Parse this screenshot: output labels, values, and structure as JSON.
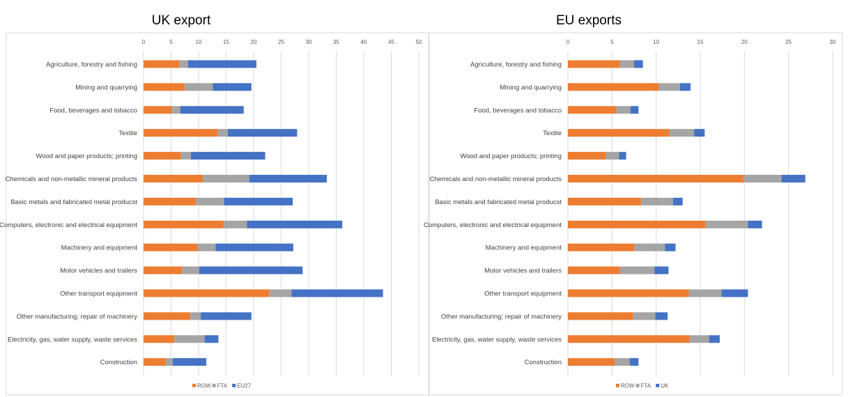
{
  "chart_data": [
    {
      "type": "bar",
      "orientation": "horizontal",
      "stacked": true,
      "title": "UK export",
      "xlim": [
        0,
        50
      ],
      "xticks": [
        0,
        5,
        10,
        15,
        20,
        25,
        30,
        35,
        40,
        45,
        50
      ],
      "grid": true,
      "legend_placement": "bottom",
      "categories": [
        "Agriculture, forestry and fishing",
        "Mining and quarrying",
        "Food, beverages and tobacco",
        "Textile",
        "Wood and paper products; printing",
        "Chemicals and non-metallic mineral products",
        "Basic metals and fabricated metal producst",
        "Computers, electronic and electrical equipment",
        "Machinery and equipment",
        "Motor vehicles and trailers",
        "Other transport equipment",
        "Other manufacturing; repair of machinery",
        "Electricity, gas, water supply, waste services",
        "Construction"
      ],
      "series": [
        {
          "name": "ROW",
          "color": "#ED7D31",
          "values": [
            6.5,
            7.5,
            5.2,
            13.5,
            6.8,
            10.8,
            9.5,
            14.5,
            9.8,
            7.0,
            22.8,
            8.5,
            5.6,
            4.0
          ]
        },
        {
          "name": "FTA",
          "color": "#A5A5A5",
          "values": [
            1.6,
            5.1,
            1.5,
            1.8,
            1.8,
            8.4,
            5.1,
            4.3,
            3.3,
            3.1,
            4.1,
            1.9,
            5.5,
            1.3
          ]
        },
        {
          "name": "EU27",
          "color": "#4472C4",
          "values": [
            12.4,
            7.0,
            11.5,
            12.6,
            13.5,
            14.1,
            12.5,
            17.3,
            14.1,
            18.8,
            16.6,
            9.2,
            2.5,
            6.1
          ]
        }
      ]
    },
    {
      "type": "bar",
      "orientation": "horizontal",
      "stacked": true,
      "title": "EU exports",
      "xlim": [
        0,
        30
      ],
      "xticks": [
        0,
        5,
        10,
        15,
        20,
        25,
        30
      ],
      "grid": true,
      "legend_placement": "bottom",
      "categories": [
        "Agriculture, forestry and fishing",
        "Mining and quarrying",
        "Food, beverages and tobacco",
        "Textile",
        "Wood and paper products; printing",
        "Chemicals and non-metallic mineral products",
        "Basic metals and fabricated metal producst",
        "Computers, electronic and electrical equipment",
        "Machinery and equipment",
        "Motor vehicles and trailers",
        "Other transport equipment",
        "Other manufacturing; repair of machinery",
        "Electricity, gas, water supply, waste services",
        "Construction"
      ],
      "series": [
        {
          "name": "ROW",
          "color": "#ED7D31",
          "values": [
            5.9,
            10.3,
            5.5,
            11.5,
            4.3,
            19.9,
            8.3,
            15.6,
            7.5,
            5.9,
            13.7,
            7.4,
            13.8,
            5.3
          ]
        },
        {
          "name": "FTA",
          "color": "#A5A5A5",
          "values": [
            1.6,
            2.4,
            1.6,
            2.8,
            1.5,
            4.3,
            3.6,
            4.8,
            3.5,
            3.9,
            3.7,
            2.5,
            2.2,
            1.7
          ]
        },
        {
          "name": "UK",
          "color": "#4472C4",
          "values": [
            1.0,
            1.2,
            0.9,
            1.2,
            0.8,
            2.7,
            1.1,
            1.6,
            1.2,
            1.6,
            3.0,
            1.4,
            1.2,
            1.0
          ]
        }
      ]
    }
  ]
}
